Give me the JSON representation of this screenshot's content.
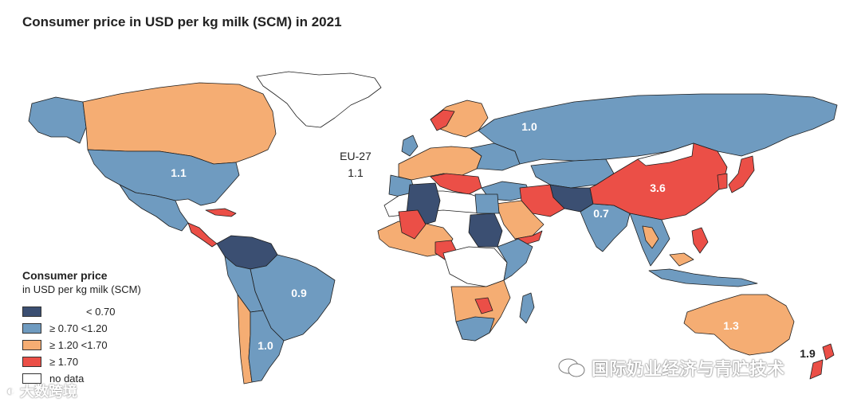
{
  "title": "Consumer price in USD per kg milk (SCM) in 2021",
  "colors": {
    "lt070": "#3b4f72",
    "r070_120": "#6f9bc0",
    "r120_170": "#f5ad73",
    "ge170": "#eb4f47",
    "nodata": "#ffffff"
  },
  "map_labels": {
    "russia": "1.0",
    "usa": "1.1",
    "china": "3.6",
    "india": "0.7",
    "brazil": "0.9",
    "argentina": "1.0",
    "australia": "1.3",
    "new_zealand": "1.9",
    "eu_name": "EU-27",
    "eu_value": "1.1"
  },
  "legend": {
    "title_line1": "Consumer price",
    "title_line2": "in USD per kg milk (SCM)",
    "items": [
      {
        "label": "< 0.70",
        "color": "#3b4f72"
      },
      {
        "label": "≥ 0.70 <1.20",
        "color": "#6f9bc0"
      },
      {
        "label": "≥ 1.20 <1.70",
        "color": "#f5ad73"
      },
      {
        "label": "≥ 1.70",
        "color": "#eb4f47"
      },
      {
        "label": "no data",
        "color": "#ffffff"
      }
    ]
  },
  "watermarks": {
    "left": "大数跨境",
    "right": "国际奶业经济与青贮技术"
  }
}
